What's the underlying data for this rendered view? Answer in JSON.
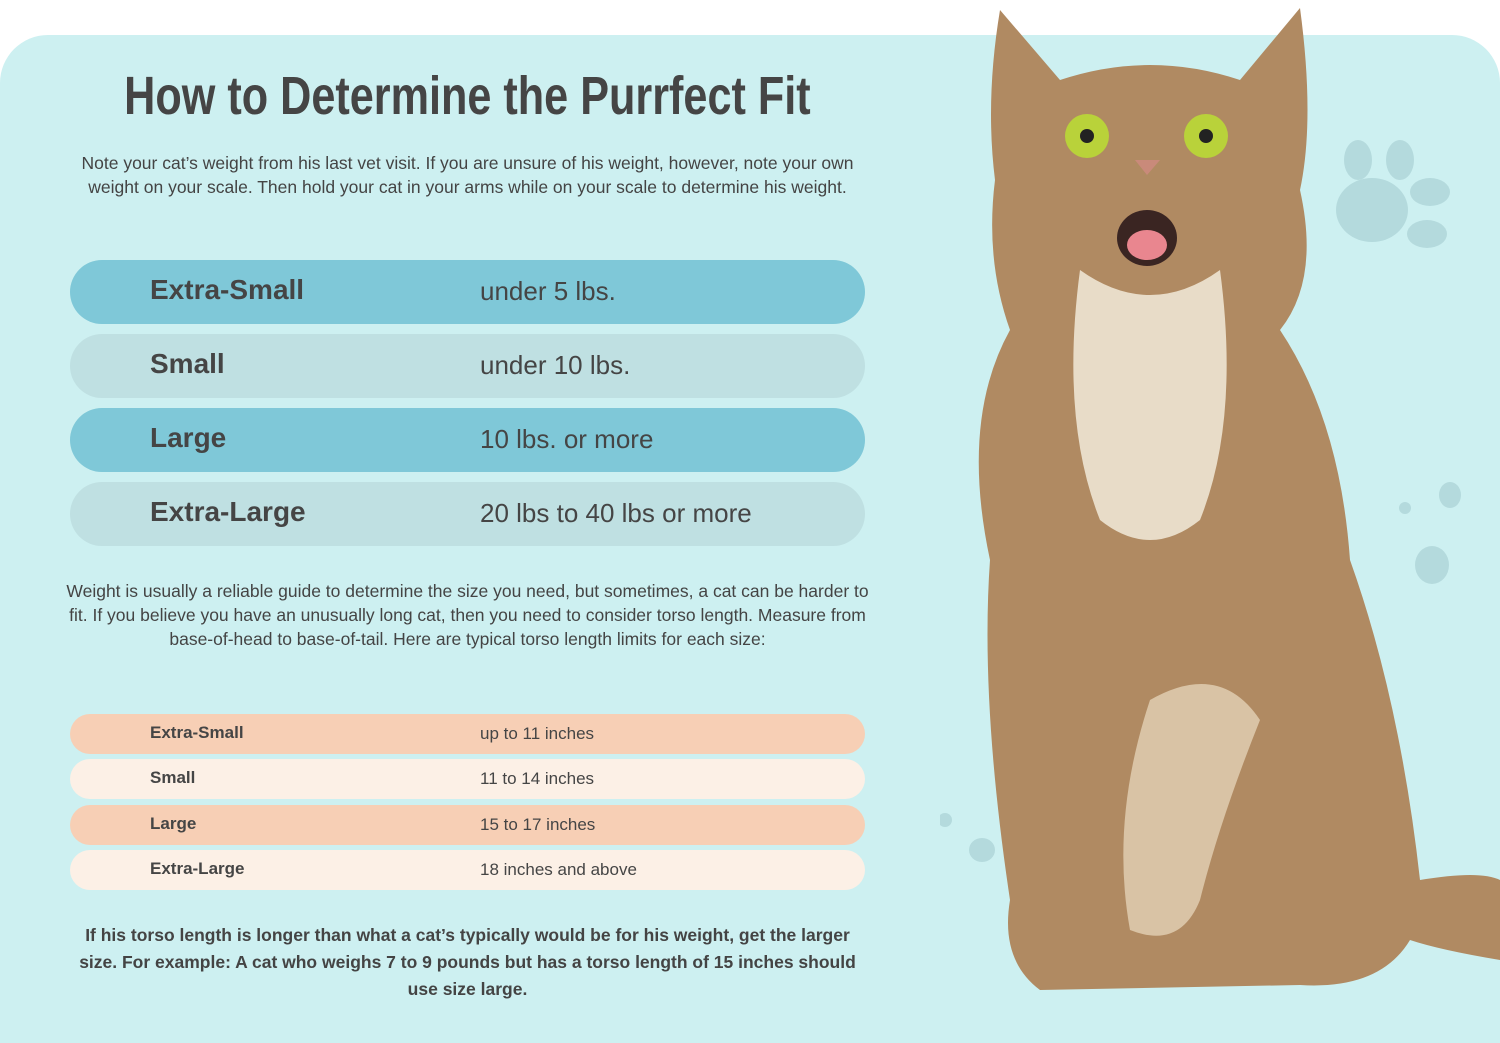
{
  "title": "How to Determine the Purrfect Fit",
  "intro": "Note your cat’s weight from his last vet visit. If you are unsure of his weight, however, note your own weight on your scale. Then hold your cat in your arms while on your scale to determine his weight.",
  "weight_sizes": [
    {
      "size": "Extra-Small",
      "value": "under 5 lbs."
    },
    {
      "size": "Small",
      "value": "under 10 lbs."
    },
    {
      "size": "Large",
      "value": "10 lbs. or more"
    },
    {
      "size": "Extra-Large",
      "value": "20 lbs to 40 lbs or more"
    }
  ],
  "middle": "Weight is usually a reliable guide to determine the size you need, but sometimes, a cat can be harder to fit. If you believe you have an unusually long cat, then you need to consider torso length. Measure from base-of-head to base-of-tail. Here are typical torso length limits for each size:",
  "torso_sizes": [
    {
      "size": "Extra-Small",
      "value": "up to 11 inches"
    },
    {
      "size": "Small",
      "value": "11 to 14 inches"
    },
    {
      "size": "Large",
      "value": "15 to 17 inches"
    },
    {
      "size": "Extra-Large",
      "value": "18 inches and above"
    }
  ],
  "footer": "If his torso length is longer than what a cat’s typically would be for his weight, get the larger size. For example: A cat who weighs 7 to 9 pounds but has a torso length of 15 inches should use size large.",
  "colors": {
    "background": "#cdf0f1",
    "row_dark": "#7fc8d8",
    "row_light": "#bfe0e2",
    "row_peach": "#f7cfb5",
    "row_cream": "#fcf0e6"
  }
}
